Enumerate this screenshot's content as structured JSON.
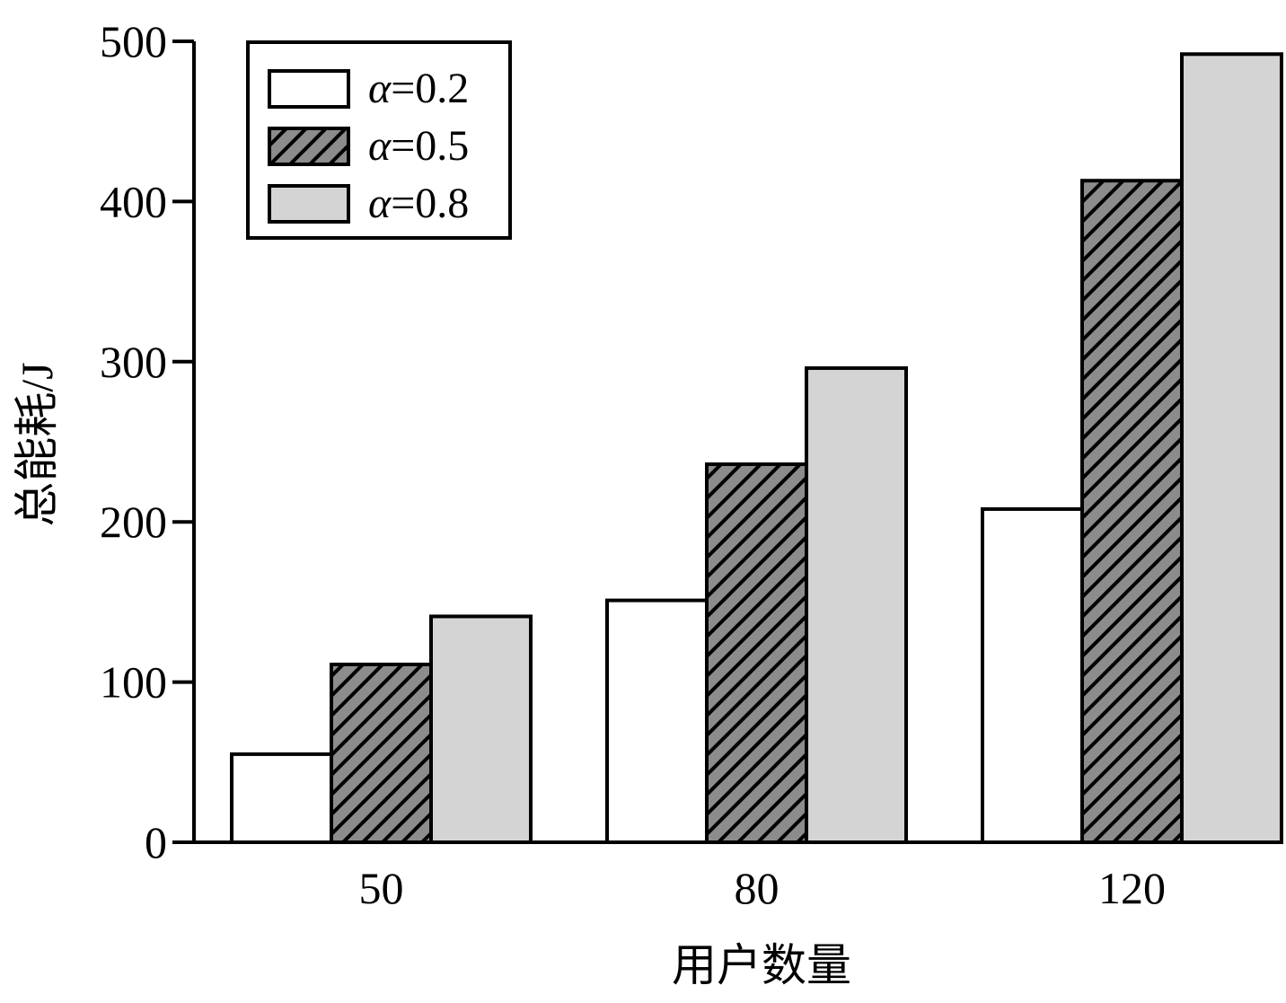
{
  "chart_data": {
    "type": "bar",
    "title": "",
    "xlabel": "用户数量",
    "ylabel": "总能耗/J",
    "categories": [
      "50",
      "80",
      "120"
    ],
    "ylim": [
      0,
      500
    ],
    "yticks": [
      "0",
      "100",
      "200",
      "300",
      "400",
      "500"
    ],
    "grid": false,
    "legend_position": "top-left",
    "series": [
      {
        "name": "α=0.2",
        "values": [
          55,
          151,
          208
        ],
        "fill": "#ffffff",
        "pattern": "none"
      },
      {
        "name": "α=0.5",
        "values": [
          111,
          236,
          413
        ],
        "fill": "#8c8c8c",
        "pattern": "diagonal-hatch"
      },
      {
        "name": "α=0.8",
        "values": [
          141,
          296,
          492
        ],
        "fill": "#d4d4d4",
        "pattern": "none"
      }
    ]
  }
}
